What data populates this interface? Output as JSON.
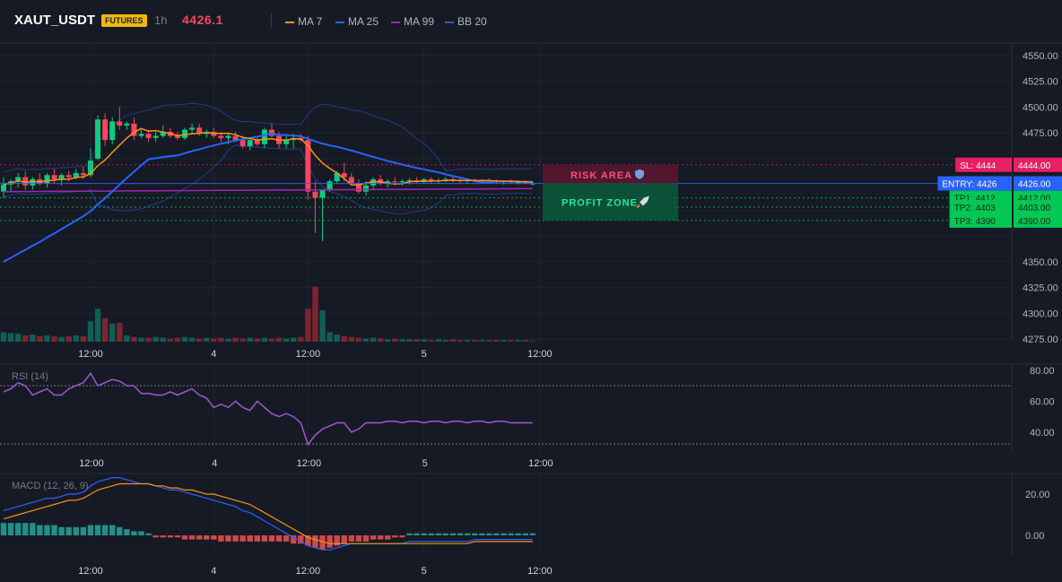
{
  "header": {
    "symbol": "XAUT_USDT",
    "badge": "FUTURES",
    "interval": "1h",
    "last_price": "4426.1",
    "legend": [
      {
        "name": "MA 7",
        "color": "#f7931a"
      },
      {
        "name": "MA 25",
        "color": "#2962ff"
      },
      {
        "name": "MA 99",
        "color": "#9c27b0"
      },
      {
        "name": "BB 20",
        "color": "#1f3d8c"
      }
    ]
  },
  "trade_zones": {
    "risk_label": "RISK AREA",
    "profit_label": "PROFIT ZONE",
    "risk_icon": "shield-icon",
    "profit_icon": "rocket-icon"
  },
  "price_tags": [
    {
      "label": "SL: 4444",
      "price": 4444,
      "value": "4444.00",
      "color": "#e91e63"
    },
    {
      "label": "ENTRY: 4426",
      "price": 4426,
      "value": "4426.00",
      "color": "#2962ff"
    },
    {
      "label": "TP1: 4412",
      "price": 4412,
      "value": "4412.00",
      "color": "#00c853"
    },
    {
      "label": "TP2: 4403",
      "price": 4403,
      "value": "4403.00",
      "color": "#00c853"
    },
    {
      "label": "TP3: 4390",
      "price": 4390,
      "value": "4390.00",
      "color": "#00c853"
    }
  ],
  "chart_data": [
    {
      "type": "candlestick",
      "y_ticks": [
        4275,
        4300,
        4325,
        4350,
        4375,
        4400,
        4425,
        4450,
        4475,
        4500,
        4525,
        4550
      ],
      "y_tick_labels": [
        "4275.00",
        "4300.00",
        "4325.00",
        "4350.00",
        "",
        "",
        "",
        "",
        "4475.00",
        "4500.00",
        "4525.00",
        "4550.00"
      ],
      "ylim": [
        4270,
        4562
      ],
      "x_labels": [
        "12:00",
        "4",
        "12:00",
        "5",
        "12:00"
      ],
      "x_label_index": [
        12,
        29,
        42,
        58,
        74
      ],
      "candles": [
        [
          4418,
          4432,
          4412,
          4425
        ],
        [
          4425,
          4430,
          4418,
          4428
        ],
        [
          4428,
          4436,
          4422,
          4432
        ],
        [
          4432,
          4438,
          4420,
          4424
        ],
        [
          4424,
          4432,
          4420,
          4430
        ],
        [
          4430,
          4436,
          4424,
          4426
        ],
        [
          4426,
          4436,
          4422,
          4434
        ],
        [
          4434,
          4440,
          4426,
          4430
        ],
        [
          4430,
          4436,
          4424,
          4434
        ],
        [
          4434,
          4438,
          4428,
          4432
        ],
        [
          4432,
          4440,
          4430,
          4436
        ],
        [
          4436,
          4442,
          4430,
          4434
        ],
        [
          4434,
          4460,
          4432,
          4448
        ],
        [
          4450,
          4492,
          4448,
          4488
        ],
        [
          4488,
          4494,
          4462,
          4468
        ],
        [
          4468,
          4490,
          4464,
          4486
        ],
        [
          4486,
          4500,
          4478,
          4482
        ],
        [
          4482,
          4486,
          4478,
          4484
        ],
        [
          4484,
          4490,
          4468,
          4472
        ],
        [
          4472,
          4478,
          4470,
          4474
        ],
        [
          4474,
          4478,
          4466,
          4470
        ],
        [
          4470,
          4476,
          4466,
          4472
        ],
        [
          4472,
          4482,
          4470,
          4476
        ],
        [
          4476,
          4480,
          4470,
          4472
        ],
        [
          4472,
          4476,
          4468,
          4470
        ],
        [
          4470,
          4480,
          4468,
          4478
        ],
        [
          4478,
          4484,
          4474,
          4480
        ],
        [
          4480,
          4484,
          4472,
          4474
        ],
        [
          4474,
          4478,
          4470,
          4476
        ],
        [
          4476,
          4480,
          4470,
          4472
        ],
        [
          4472,
          4476,
          4466,
          4470
        ],
        [
          4470,
          4474,
          4464,
          4472
        ],
        [
          4472,
          4476,
          4466,
          4468
        ],
        [
          4468,
          4472,
          4460,
          4462
        ],
        [
          4462,
          4470,
          4458,
          4468
        ],
        [
          4468,
          4472,
          4462,
          4464
        ],
        [
          4464,
          4480,
          4460,
          4478
        ],
        [
          4478,
          4484,
          4470,
          4472
        ],
        [
          4472,
          4476,
          4460,
          4464
        ],
        [
          4464,
          4472,
          4460,
          4468
        ],
        [
          4468,
          4474,
          4460,
          4470
        ],
        [
          4470,
          4474,
          4466,
          4468
        ],
        [
          4468,
          4472,
          4410,
          4418
        ],
        [
          4418,
          4428,
          4378,
          4412
        ],
        [
          4412,
          4420,
          4370,
          4420
        ],
        [
          4420,
          4430,
          4418,
          4428
        ],
        [
          4428,
          4438,
          4426,
          4436
        ],
        [
          4436,
          4446,
          4428,
          4432
        ],
        [
          4432,
          4436,
          4424,
          4426
        ],
        [
          4426,
          4430,
          4416,
          4418
        ],
        [
          4418,
          4428,
          4414,
          4424
        ],
        [
          4424,
          4432,
          4420,
          4430
        ],
        [
          4430,
          4434,
          4424,
          4426
        ],
        [
          4426,
          4430,
          4422,
          4428
        ],
        [
          4428,
          4432,
          4424,
          4427
        ],
        [
          4427,
          4430,
          4424,
          4428
        ],
        [
          4428,
          4431,
          4425,
          4429
        ],
        [
          4429,
          4432,
          4426,
          4428
        ],
        [
          4428,
          4431,
          4426,
          4430
        ],
        [
          4430,
          4432,
          4426,
          4428
        ],
        [
          4428,
          4431,
          4426,
          4429
        ],
        [
          4429,
          4432,
          4427,
          4430
        ],
        [
          4430,
          4432,
          4427,
          4429
        ],
        [
          4429,
          4431,
          4426,
          4428
        ],
        [
          4428,
          4431,
          4426,
          4429
        ],
        [
          4429,
          4431,
          4427,
          4428
        ],
        [
          4428,
          4430,
          4426,
          4429
        ],
        [
          4429,
          4431,
          4427,
          4428
        ],
        [
          4428,
          4430,
          4426,
          4427
        ],
        [
          4427,
          4429,
          4425,
          4428
        ],
        [
          4428,
          4430,
          4426,
          4427
        ],
        [
          4427,
          4429,
          4425,
          4427
        ],
        [
          4427,
          4429,
          4425,
          4426
        ],
        [
          4426,
          4428,
          4424,
          4426
        ]
      ],
      "volume": [
        12,
        11,
        10,
        8,
        9,
        7,
        8,
        7,
        6,
        7,
        8,
        7,
        26,
        42,
        30,
        23,
        24,
        8,
        6,
        5,
        5,
        6,
        5,
        4,
        5,
        6,
        5,
        4,
        5,
        4,
        5,
        4,
        5,
        4,
        5,
        4,
        5,
        4,
        5,
        4,
        5,
        6,
        42,
        70,
        40,
        12,
        9,
        7,
        6,
        5,
        4,
        5,
        4,
        3,
        4,
        3,
        3,
        3,
        3,
        2,
        3,
        2,
        3,
        2,
        2,
        2,
        2,
        2,
        2,
        2,
        2,
        2,
        2,
        1
      ],
      "vol_max": 80
    },
    {
      "type": "line",
      "title": "RSI (14)",
      "y_ticks": [
        40,
        60,
        80
      ],
      "y_tick_labels": [
        "40.00",
        "60.00",
        "80.00"
      ],
      "ylim": [
        26,
        84
      ],
      "guides": [
        70,
        30
      ],
      "values": [
        66,
        68,
        72,
        70,
        64,
        66,
        68,
        64,
        64,
        68,
        70,
        72,
        78,
        70,
        72,
        74,
        73,
        70,
        70,
        65,
        65,
        64,
        64,
        66,
        64,
        66,
        68,
        64,
        62,
        56,
        58,
        56,
        60,
        56,
        54,
        60,
        56,
        52,
        50,
        52,
        50,
        46,
        32,
        38,
        42,
        44,
        46,
        46,
        40,
        42,
        46,
        46,
        46,
        47,
        47,
        46,
        47,
        47,
        46,
        47,
        47,
        46,
        47,
        47,
        46,
        47,
        47,
        46,
        47,
        47,
        46,
        46,
        46,
        46
      ]
    },
    {
      "type": "bar+line",
      "title": "MACD (12, 26, 9)",
      "y_ticks": [
        0,
        20
      ],
      "y_tick_labels": [
        "0.00",
        "20.00"
      ],
      "ylim": [
        -10,
        30
      ],
      "macd": [
        12,
        13,
        14,
        15,
        16,
        17,
        18,
        18,
        19,
        20,
        20,
        21,
        24,
        26,
        27,
        28,
        28,
        27,
        26,
        25,
        25,
        24,
        23,
        22,
        22,
        21,
        20,
        19,
        18,
        17,
        16,
        15,
        14,
        12,
        11,
        9,
        7,
        5,
        3,
        1,
        -1,
        -3,
        -5,
        -6,
        -7,
        -7,
        -6,
        -5,
        -4,
        -4,
        -4,
        -4,
        -4,
        -4,
        -4,
        -4,
        -3,
        -3,
        -3,
        -3,
        -3,
        -3,
        -3,
        -3,
        -3,
        -2,
        -2,
        -2,
        -2,
        -2,
        -2,
        -2,
        -2,
        -2
      ],
      "signal": [
        8,
        9,
        10,
        11,
        12,
        13,
        14,
        15,
        16,
        17,
        17,
        18,
        20,
        22,
        23,
        24,
        25,
        25,
        25,
        25,
        25,
        24,
        24,
        23,
        23,
        22,
        22,
        21,
        20,
        20,
        19,
        18,
        17,
        16,
        15,
        13,
        11,
        9,
        7,
        5,
        3,
        1,
        -1,
        -2,
        -3,
        -4,
        -4,
        -4,
        -4,
        -4,
        -4,
        -4,
        -4,
        -4,
        -4,
        -4,
        -4,
        -4,
        -4,
        -4,
        -4,
        -4,
        -4,
        -4,
        -4,
        -3,
        -3,
        -3,
        -3,
        -3,
        -3,
        -3,
        -3,
        -3
      ],
      "histogram": [
        6,
        6,
        6,
        6,
        6,
        5,
        5,
        5,
        4,
        4,
        4,
        4,
        5,
        5,
        5,
        5,
        4,
        3,
        2,
        2,
        1,
        -1,
        -1,
        -1,
        -1,
        -2,
        -2,
        -2,
        -2,
        -2,
        -3,
        -3,
        -3,
        -3,
        -3,
        -3,
        -3,
        -3,
        -3,
        -3,
        -4,
        -4,
        -5,
        -6,
        -7,
        -6,
        -5,
        -4,
        -3,
        -3,
        -3,
        -2,
        -2,
        -2,
        -1,
        -1,
        1,
        1,
        1,
        1,
        1,
        1,
        1,
        1,
        1,
        1,
        1,
        1,
        1,
        1,
        1,
        1,
        1,
        1
      ]
    }
  ]
}
